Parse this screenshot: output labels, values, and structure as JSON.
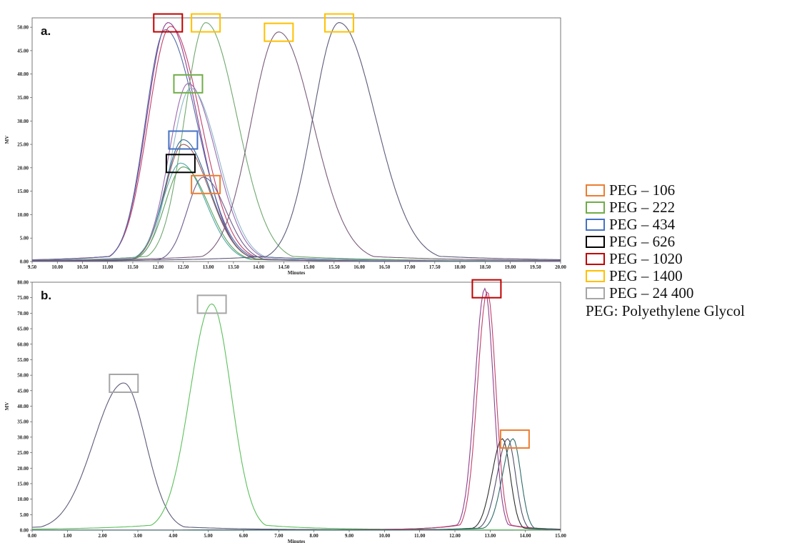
{
  "legend": {
    "items": [
      {
        "label": "PEG – 106",
        "color": "#ED7D31"
      },
      {
        "label": "PEG – 222",
        "color": "#70AD47"
      },
      {
        "label": "PEG – 434",
        "color": "#4472C4"
      },
      {
        "label": "PEG – 626",
        "color": "#000000"
      },
      {
        "label": "PEG – 1020",
        "color": "#C00000"
      },
      {
        "label": "PEG – 1400",
        "color": "#FFC000"
      },
      {
        "label": "PEG – 24 400",
        "color": "#A6A6A6"
      }
    ],
    "note": "PEG: Polyethylene Glycol"
  },
  "chart_data": [
    {
      "type": "line",
      "panel_label": "a.",
      "xlabel": "Minutes",
      "ylabel": "MV",
      "xlim": [
        9.5,
        20.0
      ],
      "ylim": [
        0,
        52
      ],
      "x_ticks": [
        "9.50",
        "10.00",
        "10.50",
        "11.00",
        "11.50",
        "12.00",
        "12.50",
        "13.00",
        "13.50",
        "14.00",
        "14.50",
        "15.00",
        "15.50",
        "16.00",
        "16.50",
        "17.00",
        "17.50",
        "18.00",
        "18.50",
        "19.00",
        "19.50",
        "20.00"
      ],
      "y_ticks": [
        "0.00",
        "5.00",
        "10.00",
        "15.00",
        "20.00",
        "25.00",
        "30.00",
        "35.00",
        "40.00",
        "45.00",
        "50.00"
      ],
      "grid": false,
      "series": [
        {
          "color": "#8E3F8E",
          "peak_x": 12.2,
          "peak_y": 51.0,
          "sigma_left": 0.42,
          "sigma_right": 0.58
        },
        {
          "color": "#C0416B",
          "peak_x": 12.25,
          "peak_y": 50.2,
          "sigma_left": 0.44,
          "sigma_right": 0.6
        },
        {
          "color": "#4F6BA8",
          "peak_x": 12.15,
          "peak_y": 49.5,
          "sigma_left": 0.4,
          "sigma_right": 0.62
        },
        {
          "color": "#6FA86F",
          "peak_x": 12.95,
          "peak_y": 51.0,
          "sigma_left": 0.42,
          "sigma_right": 0.62
        },
        {
          "color": "#9B6BB0",
          "peak_x": 12.6,
          "peak_y": 38.0,
          "sigma_left": 0.38,
          "sigma_right": 0.55
        },
        {
          "color": "#8FB8C8",
          "peak_x": 12.65,
          "peak_y": 37.0,
          "sigma_left": 0.38,
          "sigma_right": 0.55
        },
        {
          "color": "#2F6B9A",
          "peak_x": 12.5,
          "peak_y": 26.0,
          "sigma_left": 0.36,
          "sigma_right": 0.52
        },
        {
          "color": "#9B5C5C",
          "peak_x": 12.5,
          "peak_y": 25.0,
          "sigma_left": 0.36,
          "sigma_right": 0.52
        },
        {
          "color": "#4FA8A8",
          "peak_x": 12.45,
          "peak_y": 21.0,
          "sigma_left": 0.36,
          "sigma_right": 0.5
        },
        {
          "color": "#5CA05C",
          "peak_x": 12.5,
          "peak_y": 20.2,
          "sigma_left": 0.36,
          "sigma_right": 0.5
        },
        {
          "color": "#6E5C8E",
          "peak_x": 12.9,
          "peak_y": 18.0,
          "sigma_left": 0.32,
          "sigma_right": 0.45
        },
        {
          "color": "#7A5C7A",
          "peak_x": 14.4,
          "peak_y": 49.0,
          "sigma_left": 0.55,
          "sigma_right": 0.68
        },
        {
          "color": "#5C5C7A",
          "peak_x": 15.6,
          "peak_y": 51.0,
          "sigma_left": 0.52,
          "sigma_right": 0.72
        }
      ],
      "peak_markers": [
        {
          "x": 12.2,
          "y": 51.0,
          "legend": "PEG – 1020",
          "color": "#C00000"
        },
        {
          "x": 12.95,
          "y": 51.0,
          "legend": "PEG – 1400",
          "color": "#FFC000"
        },
        {
          "x": 14.4,
          "y": 49.0,
          "legend": "PEG – 1400",
          "color": "#FFC000"
        },
        {
          "x": 15.6,
          "y": 51.0,
          "legend": "PEG – 1400",
          "color": "#FFC000"
        },
        {
          "x": 12.6,
          "y": 38.0,
          "legend": "PEG – 222",
          "color": "#70AD47"
        },
        {
          "x": 12.5,
          "y": 26.0,
          "legend": "PEG – 434",
          "color": "#4472C4"
        },
        {
          "x": 12.45,
          "y": 21.0,
          "legend": "PEG – 626",
          "color": "#000000"
        },
        {
          "x": 12.95,
          "y": 16.5,
          "legend": "PEG – 106",
          "color": "#ED7D31"
        }
      ]
    },
    {
      "type": "line",
      "panel_label": "b.",
      "xlabel": "Minutes",
      "ylabel": "MV",
      "xlim": [
        0.0,
        15.0
      ],
      "ylim": [
        0,
        80
      ],
      "x_ticks": [
        "0.00",
        "1.00",
        "2.00",
        "3.00",
        "4.00",
        "5.00",
        "6.00",
        "7.00",
        "8.00",
        "9.00",
        "10.00",
        "11.00",
        "12.00",
        "13.00",
        "14.00",
        "15.00"
      ],
      "y_ticks": [
        "0.00",
        "5.00",
        "10.00",
        "15.00",
        "20.00",
        "25.00",
        "30.00",
        "35.00",
        "40.00",
        "45.00",
        "50.00",
        "55.00",
        "60.00",
        "65.00",
        "70.00",
        "75.00",
        "80.00"
      ],
      "grid": false,
      "series": [
        {
          "color": "#5C5C7A",
          "peak_x": 2.6,
          "peak_y": 47.5,
          "sigma_left": 0.85,
          "sigma_right": 0.62
        },
        {
          "color": "#5CC05C",
          "peak_x": 5.1,
          "peak_y": 73.0,
          "sigma_left": 0.62,
          "sigma_right": 0.55
        },
        {
          "color": "#8E3F8E",
          "peak_x": 12.85,
          "peak_y": 78.0,
          "sigma_left": 0.28,
          "sigma_right": 0.24
        },
        {
          "color": "#C0416B",
          "peak_x": 12.92,
          "peak_y": 77.0,
          "sigma_left": 0.28,
          "sigma_right": 0.24
        },
        {
          "color": "#2E2E2E",
          "peak_x": 13.35,
          "peak_y": 29.5,
          "sigma_left": 0.3,
          "sigma_right": 0.22
        },
        {
          "color": "#4F4F6B",
          "peak_x": 13.5,
          "peak_y": 29.5,
          "sigma_left": 0.3,
          "sigma_right": 0.22
        },
        {
          "color": "#2E6B6B",
          "peak_x": 13.65,
          "peak_y": 29.5,
          "sigma_left": 0.3,
          "sigma_right": 0.22
        }
      ],
      "peak_markers": [
        {
          "x": 2.6,
          "y": 47.5,
          "legend": "PEG – 24 400",
          "color": "#A6A6A6"
        },
        {
          "x": 5.1,
          "y": 73.0,
          "legend": "PEG – 24 400",
          "color": "#A6A6A6"
        },
        {
          "x": 12.9,
          "y": 78.0,
          "legend": "PEG – 1020",
          "color": "#C00000"
        },
        {
          "x": 13.7,
          "y": 29.5,
          "legend": "PEG – 106",
          "color": "#ED7D31"
        }
      ]
    }
  ]
}
